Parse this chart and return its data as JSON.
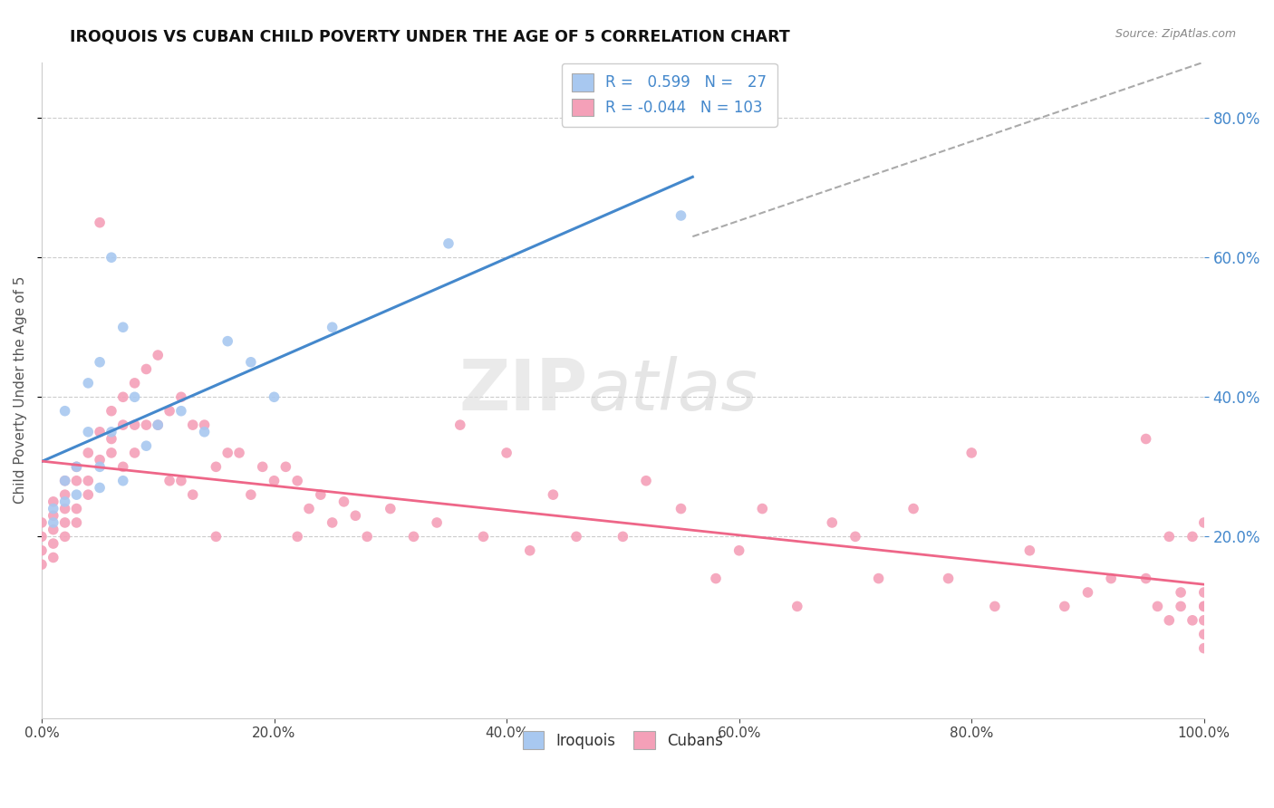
{
  "title": "IROQUOIS VS CUBAN CHILD POVERTY UNDER THE AGE OF 5 CORRELATION CHART",
  "source": "Source: ZipAtlas.com",
  "ylabel": "Child Poverty Under the Age of 5",
  "xlim": [
    0.0,
    1.0
  ],
  "ylim": [
    -0.06,
    0.88
  ],
  "yticks_right": [
    0.2,
    0.4,
    0.6,
    0.8
  ],
  "xticks": [
    0.0,
    0.2,
    0.4,
    0.6,
    0.8,
    1.0
  ],
  "r_iroquois": 0.599,
  "n_iroquois": 27,
  "r_cubans": -0.044,
  "n_cubans": 103,
  "iroquois_color": "#a8c8f0",
  "cubans_color": "#f4a0b8",
  "iroquois_line_color": "#4488cc",
  "cubans_line_color": "#ee6688",
  "diagonal_line_color": "#aaaaaa",
  "background_color": "#ffffff",
  "grid_color": "#cccccc",
  "right_axis_color": "#4488cc",
  "iroquois_x": [
    0.01,
    0.01,
    0.02,
    0.02,
    0.02,
    0.03,
    0.03,
    0.04,
    0.04,
    0.05,
    0.05,
    0.05,
    0.06,
    0.06,
    0.07,
    0.07,
    0.08,
    0.09,
    0.1,
    0.12,
    0.14,
    0.16,
    0.18,
    0.2,
    0.25,
    0.35,
    0.55
  ],
  "iroquois_y": [
    0.24,
    0.22,
    0.25,
    0.28,
    0.38,
    0.26,
    0.3,
    0.42,
    0.35,
    0.3,
    0.45,
    0.27,
    0.6,
    0.35,
    0.5,
    0.28,
    0.4,
    0.33,
    0.36,
    0.38,
    0.35,
    0.48,
    0.45,
    0.4,
    0.5,
    0.62,
    0.66
  ],
  "cubans_x": [
    0.0,
    0.0,
    0.0,
    0.0,
    0.01,
    0.01,
    0.01,
    0.01,
    0.01,
    0.02,
    0.02,
    0.02,
    0.02,
    0.02,
    0.03,
    0.03,
    0.03,
    0.03,
    0.04,
    0.04,
    0.04,
    0.05,
    0.05,
    0.05,
    0.06,
    0.06,
    0.06,
    0.07,
    0.07,
    0.07,
    0.08,
    0.08,
    0.08,
    0.09,
    0.09,
    0.1,
    0.1,
    0.11,
    0.11,
    0.12,
    0.12,
    0.13,
    0.13,
    0.14,
    0.15,
    0.15,
    0.16,
    0.17,
    0.18,
    0.19,
    0.2,
    0.21,
    0.22,
    0.22,
    0.23,
    0.24,
    0.25,
    0.26,
    0.27,
    0.28,
    0.3,
    0.32,
    0.34,
    0.36,
    0.38,
    0.4,
    0.42,
    0.44,
    0.46,
    0.5,
    0.52,
    0.55,
    0.58,
    0.6,
    0.62,
    0.65,
    0.68,
    0.7,
    0.72,
    0.75,
    0.78,
    0.8,
    0.82,
    0.85,
    0.88,
    0.9,
    0.92,
    0.95,
    0.95,
    0.96,
    0.97,
    0.97,
    0.98,
    0.98,
    0.99,
    0.99,
    1.0,
    1.0,
    1.0,
    1.0,
    1.0,
    1.0,
    1.0
  ],
  "cubans_y": [
    0.22,
    0.2,
    0.18,
    0.16,
    0.25,
    0.23,
    0.21,
    0.19,
    0.17,
    0.28,
    0.26,
    0.24,
    0.22,
    0.2,
    0.3,
    0.28,
    0.24,
    0.22,
    0.32,
    0.28,
    0.26,
    0.65,
    0.35,
    0.31,
    0.38,
    0.34,
    0.32,
    0.4,
    0.36,
    0.3,
    0.42,
    0.36,
    0.32,
    0.44,
    0.36,
    0.46,
    0.36,
    0.38,
    0.28,
    0.4,
    0.28,
    0.36,
    0.26,
    0.36,
    0.3,
    0.2,
    0.32,
    0.32,
    0.26,
    0.3,
    0.28,
    0.3,
    0.2,
    0.28,
    0.24,
    0.26,
    0.22,
    0.25,
    0.23,
    0.2,
    0.24,
    0.2,
    0.22,
    0.36,
    0.2,
    0.32,
    0.18,
    0.26,
    0.2,
    0.2,
    0.28,
    0.24,
    0.14,
    0.18,
    0.24,
    0.1,
    0.22,
    0.2,
    0.14,
    0.24,
    0.14,
    0.32,
    0.1,
    0.18,
    0.1,
    0.12,
    0.14,
    0.34,
    0.14,
    0.1,
    0.08,
    0.2,
    0.12,
    0.1,
    0.08,
    0.2,
    0.06,
    0.1,
    0.04,
    0.12,
    0.22,
    0.1,
    0.08
  ]
}
